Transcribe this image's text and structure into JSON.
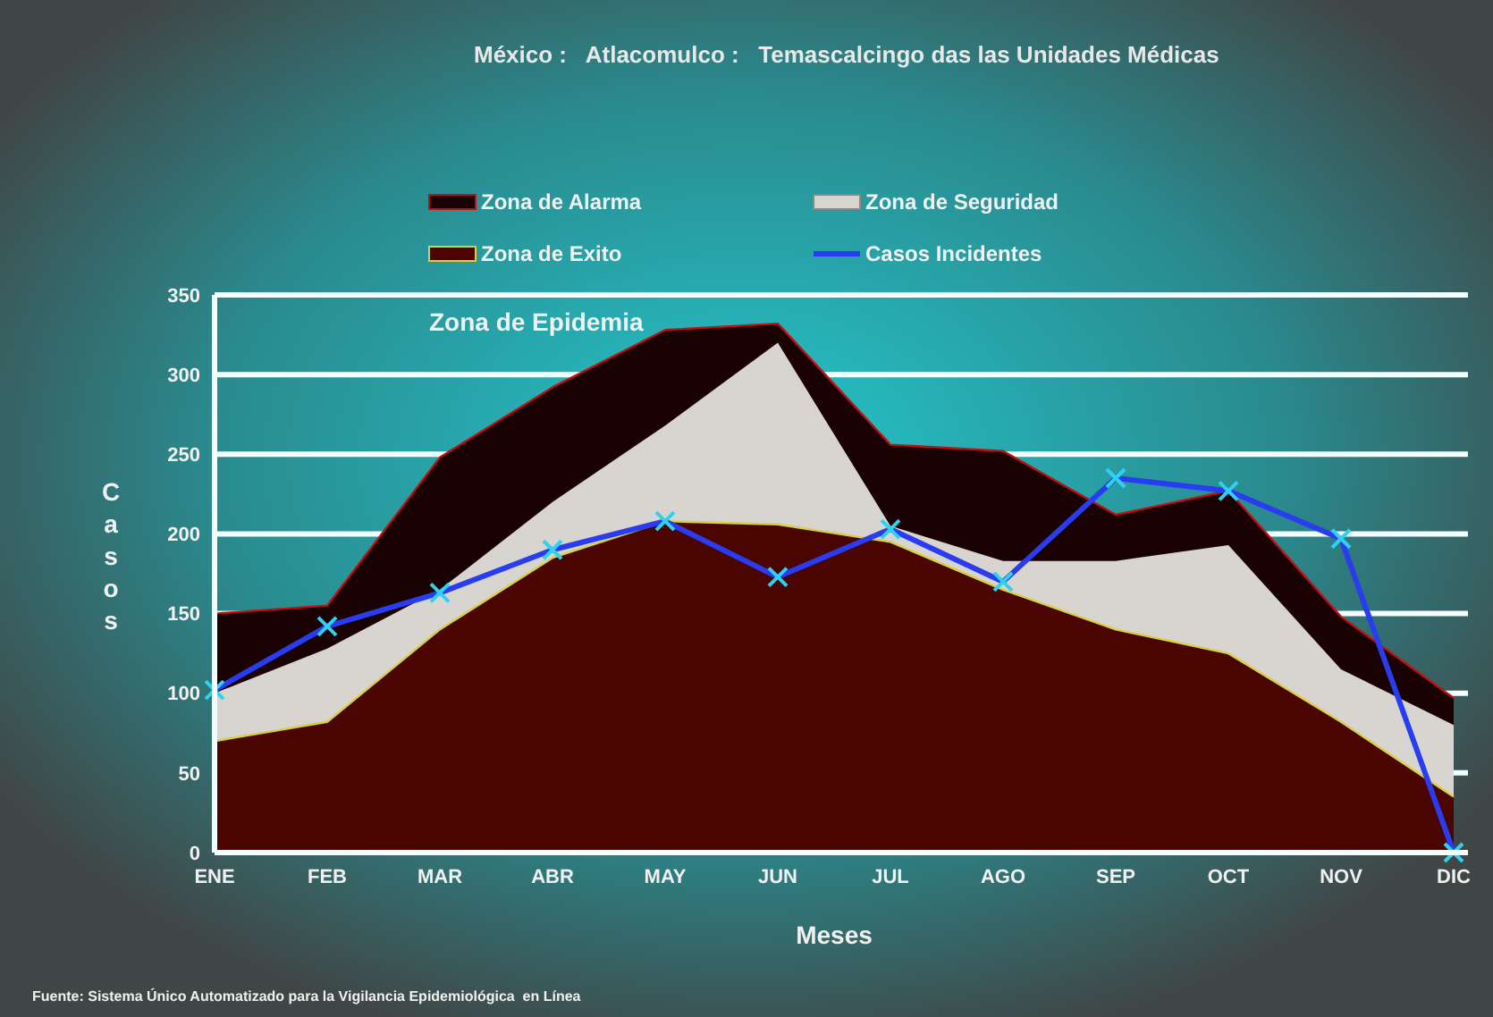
{
  "chart_data": {
    "type": "area",
    "title": "México :   Atlacomulco :   Temascalcingo das las Unidades Médicas",
    "xlabel": "Meses",
    "ylabel": "Casos",
    "categories": [
      "ENE",
      "FEB",
      "MAR",
      "ABR",
      "MAY",
      "JUN",
      "JUL",
      "AGO",
      "SEP",
      "OCT",
      "NOV",
      "DIC"
    ],
    "series": [
      {
        "name": "Zona de Alarma",
        "color": "#1a0202",
        "values": [
          150,
          155,
          248,
          292,
          328,
          332,
          256,
          252,
          212,
          227,
          148,
          97
        ]
      },
      {
        "name": "Zona de Seguridad",
        "color": "#d8d4d0",
        "values": [
          100,
          128,
          165,
          220,
          268,
          320,
          205,
          183,
          183,
          193,
          115,
          80
        ]
      },
      {
        "name": "Zona de Exito",
        "color": "#4a0500",
        "values": [
          70,
          82,
          140,
          185,
          208,
          206,
          195,
          165,
          140,
          125,
          82,
          35
        ]
      },
      {
        "name": "Casos Incidentes",
        "type": "line",
        "color": "#2a3cf0",
        "marker": "cross",
        "values": [
          102,
          142,
          163,
          190,
          208,
          173,
          203,
          170,
          235,
          227,
          197,
          0
        ]
      }
    ],
    "ylim": [
      0,
      350
    ],
    "yticks": [
      0,
      50,
      100,
      150,
      200,
      250,
      300,
      350
    ],
    "grid": "y",
    "legend": "top",
    "annotations": [
      "Zona de Epidemia",
      "Fuente: Sistema Único Automatizado para la Vigilancia Epidemiológica  en Línea"
    ]
  }
}
